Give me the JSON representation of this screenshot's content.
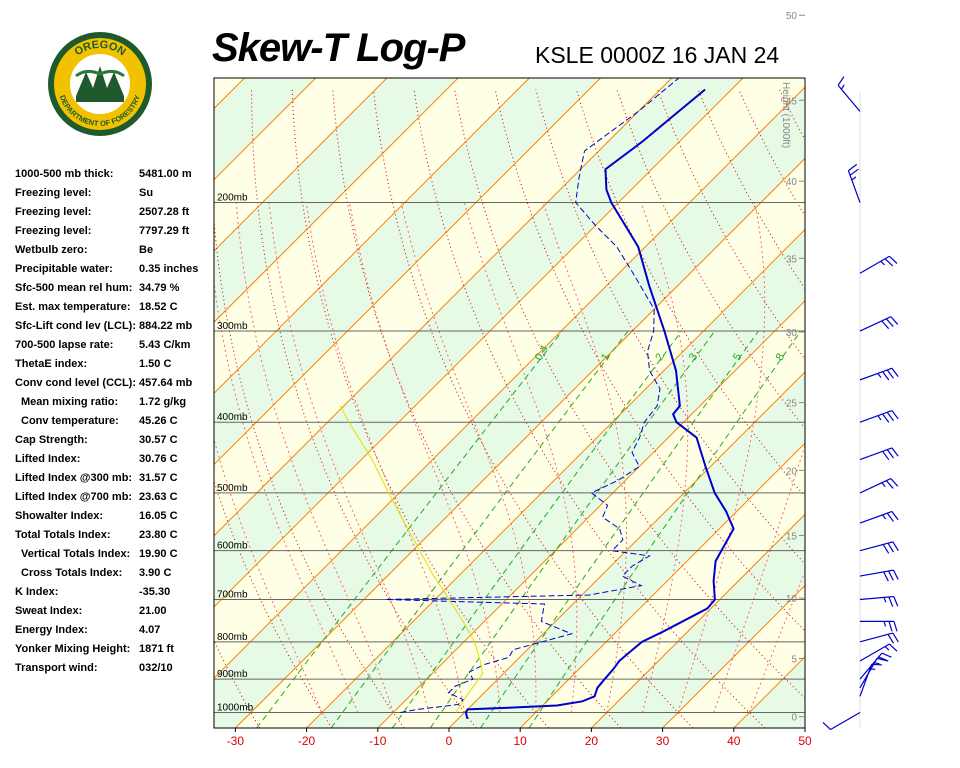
{
  "header": {
    "title": "Skew-T Log-P",
    "station": "KSLE 0000Z 16 JAN 24"
  },
  "logo": {
    "top_text": "OREGON",
    "bottom_text": "DEPARTMENT OF FORESTRY",
    "ring_color": "#f2c200",
    "inner_color": "#1e5a2c"
  },
  "stats": [
    {
      "label": "1000-500 mb thick:",
      "value": "5481.00 m",
      "indent": false
    },
    {
      "label": "Freezing level:",
      "value": "Su",
      "indent": false
    },
    {
      "label": "Freezing level:",
      "value": "2507.28 ft",
      "indent": false
    },
    {
      "label": "Freezing level:",
      "value": "7797.29 ft",
      "indent": false
    },
    {
      "label": "Wetbulb zero:",
      "value": "Be",
      "indent": false
    },
    {
      "label": "Precipitable water:",
      "value": "0.35 inches",
      "indent": false
    },
    {
      "label": "Sfc-500 mean rel hum:",
      "value": "34.79 %",
      "indent": false
    },
    {
      "label": "Est. max temperature:",
      "value": "18.52 C",
      "indent": false
    },
    {
      "label": "Sfc-Lift cond lev (LCL):",
      "value": "884.22 mb",
      "indent": false
    },
    {
      "label": "700-500 lapse rate:",
      "value": "5.43 C/km",
      "indent": false
    },
    {
      "label": "ThetaE index:",
      "value": "1.50 C",
      "indent": false
    },
    {
      "label": "Conv cond level (CCL):",
      "value": "457.64 mb",
      "indent": false
    },
    {
      "label": "Mean mixing ratio:",
      "value": "1.72 g/kg",
      "indent": true
    },
    {
      "label": "Conv temperature:",
      "value": "45.26 C",
      "indent": true
    },
    {
      "label": "Cap Strength:",
      "value": "30.57 C",
      "indent": false
    },
    {
      "label": "Lifted Index:",
      "value": "30.76 C",
      "indent": false
    },
    {
      "label": "Lifted Index @300 mb:",
      "value": "31.57 C",
      "indent": false
    },
    {
      "label": "Lifted Index @700 mb:",
      "value": "23.63 C",
      "indent": false
    },
    {
      "label": "Showalter Index:",
      "value": "16.05 C",
      "indent": false
    },
    {
      "label": "Total Totals Index:",
      "value": "23.80 C",
      "indent": false
    },
    {
      "label": "Vertical Totals Index:",
      "value": "19.90 C",
      "indent": true
    },
    {
      "label": "Cross Totals Index:",
      "value": "3.90 C",
      "indent": true
    },
    {
      "label": "K Index:",
      "value": "-35.30",
      "indent": false
    },
    {
      "label": "Sweat Index:",
      "value": "21.00",
      "indent": false
    },
    {
      "label": "Energy Index:",
      "value": "4.07",
      "indent": false
    },
    {
      "label": "Yonker Mixing Height:",
      "value": "1871 ft",
      "indent": false
    },
    {
      "label": "Transport wind:",
      "value": "032/10",
      "indent": false
    }
  ],
  "chart_data": {
    "type": "skew-t log-p",
    "x_axis": {
      "label": "",
      "ticks": [
        "-30",
        "-20",
        "-10",
        "0",
        "10",
        "20",
        "30",
        "40",
        "50"
      ],
      "range_c": [
        -33,
        50
      ]
    },
    "pressure_axis": {
      "ticks": [
        "1000mb",
        "900mb",
        "800mb",
        "700mb",
        "600mb",
        "500mb",
        "400mb",
        "300mb",
        "200mb"
      ],
      "range_mb": [
        1050,
        135
      ]
    },
    "height_axis": {
      "label": "Height (1000ft)",
      "ticks": [
        "0",
        "5",
        "10",
        "15",
        "20",
        "25",
        "30",
        "35",
        "40",
        "45",
        "50"
      ]
    },
    "mixing_ratio_labels": [
      "0.4",
      "1",
      "2",
      "3",
      "5",
      "8"
    ],
    "series": [
      {
        "role": "temperature",
        "color": "#0000cc",
        "points": [
          [
            1020,
            1.3
          ],
          [
            1000,
            0.2
          ],
          [
            990,
            0.0
          ],
          [
            985,
            5.5
          ],
          [
            978,
            12.0
          ],
          [
            965,
            15.0
          ],
          [
            950,
            16.0
          ],
          [
            925,
            15.2
          ],
          [
            900,
            15.0
          ],
          [
            870,
            14.8
          ],
          [
            850,
            14.5
          ],
          [
            800,
            15.0
          ],
          [
            775,
            16.5
          ],
          [
            720,
            19.5
          ],
          [
            700,
            19.3
          ],
          [
            660,
            16.5
          ],
          [
            620,
            14.0
          ],
          [
            560,
            12.0
          ],
          [
            530,
            8.5
          ],
          [
            500,
            4.3
          ],
          [
            460,
            -0.7
          ],
          [
            420,
            -6.0
          ],
          [
            400,
            -11.0
          ],
          [
            390,
            -12.6
          ],
          [
            380,
            -12.8
          ],
          [
            340,
            -18.3
          ],
          [
            300,
            -25.5
          ],
          [
            260,
            -34.0
          ],
          [
            230,
            -41.0
          ],
          [
            200,
            -51.0
          ],
          [
            192,
            -53.5
          ],
          [
            180,
            -56.5
          ],
          [
            165,
            -55.2
          ],
          [
            140,
            -53.7
          ]
        ]
      },
      {
        "role": "dewpoint",
        "color": "#0000cc",
        "points": [
          [
            1000,
            -9
          ],
          [
            990,
            -7
          ],
          [
            975,
            -2
          ],
          [
            960,
            -2
          ],
          [
            940,
            -5
          ],
          [
            920,
            -5
          ],
          [
            900,
            -3.5
          ],
          [
            880,
            -5
          ],
          [
            860,
            -4
          ],
          [
            840,
            -1.5
          ],
          [
            820,
            -2
          ],
          [
            800,
            1
          ],
          [
            780,
            4
          ],
          [
            770,
            2
          ],
          [
            750,
            -2
          ],
          [
            730,
            -3
          ],
          [
            710,
            -4
          ],
          [
            700,
            -27
          ],
          [
            690,
            1
          ],
          [
            670,
            7
          ],
          [
            650,
            3
          ],
          [
            630,
            3
          ],
          [
            610,
            4
          ],
          [
            600,
            -2
          ],
          [
            580,
            -2
          ],
          [
            560,
            -4
          ],
          [
            540,
            -8
          ],
          [
            520,
            -9
          ],
          [
            500,
            -13
          ],
          [
            480,
            -11
          ],
          [
            460,
            -10
          ],
          [
            440,
            -13
          ],
          [
            420,
            -14
          ],
          [
            400,
            -15.5
          ],
          [
            380,
            -16
          ],
          [
            360,
            -18
          ],
          [
            340,
            -22
          ],
          [
            320,
            -25
          ],
          [
            300,
            -27
          ],
          [
            280,
            -30
          ],
          [
            250,
            -38
          ],
          [
            230,
            -44
          ],
          [
            215,
            -50
          ],
          [
            200,
            -56
          ],
          [
            185,
            -59
          ],
          [
            170,
            -62
          ],
          [
            150,
            -60
          ],
          [
            135,
            -59
          ]
        ]
      },
      {
        "role": "parcel",
        "color": "#e0e000",
        "points": [
          [
            1000,
            -1.2
          ],
          [
            950,
            -2.0
          ],
          [
            900,
            -2.7
          ],
          [
            885,
            -2.9
          ],
          [
            850,
            -5.0
          ],
          [
            800,
            -8.5
          ],
          [
            750,
            -13.0
          ],
          [
            700,
            -18.0
          ],
          [
            650,
            -23.5
          ],
          [
            600,
            -29.0
          ],
          [
            550,
            -35.0
          ],
          [
            500,
            -41.5
          ],
          [
            450,
            -48.5
          ],
          [
            400,
            -57.0
          ],
          [
            380,
            -60.5
          ]
        ]
      }
    ],
    "wind_barbs": [
      {
        "p": 1000,
        "dir": 240,
        "kt": 10
      },
      {
        "p": 950,
        "dir": 20,
        "kt": 15
      },
      {
        "p": 925,
        "dir": 30,
        "kt": 15
      },
      {
        "p": 900,
        "dir": 40,
        "kt": 20
      },
      {
        "p": 850,
        "dir": 60,
        "kt": 15
      },
      {
        "p": 800,
        "dir": 75,
        "kt": 20
      },
      {
        "p": 750,
        "dir": 90,
        "kt": 25
      },
      {
        "p": 700,
        "dir": 85,
        "kt": 25
      },
      {
        "p": 650,
        "dir": 80,
        "kt": 30
      },
      {
        "p": 600,
        "dir": 75,
        "kt": 30
      },
      {
        "p": 550,
        "dir": 70,
        "kt": 25
      },
      {
        "p": 500,
        "dir": 65,
        "kt": 25
      },
      {
        "p": 450,
        "dir": 70,
        "kt": 30
      },
      {
        "p": 400,
        "dir": 70,
        "kt": 35
      },
      {
        "p": 350,
        "dir": 70,
        "kt": 35
      },
      {
        "p": 300,
        "dir": 65,
        "kt": 30
      },
      {
        "p": 250,
        "dir": 60,
        "kt": 25
      },
      {
        "p": 200,
        "dir": 340,
        "kt": 25
      },
      {
        "p": 150,
        "dir": 320,
        "kt": 15
      }
    ],
    "colors": {
      "isotherm": "#ff8000",
      "dry_adiabat": "#d00000",
      "moist_adiabat": "#ff6666",
      "mixing_ratio": "#22aa22",
      "zero_isotherm": "#000000",
      "band_light": "#ffffe6",
      "band_green": "#e6fae6",
      "tick_label_red": "#dd0000",
      "height_label": "#888888"
    }
  }
}
